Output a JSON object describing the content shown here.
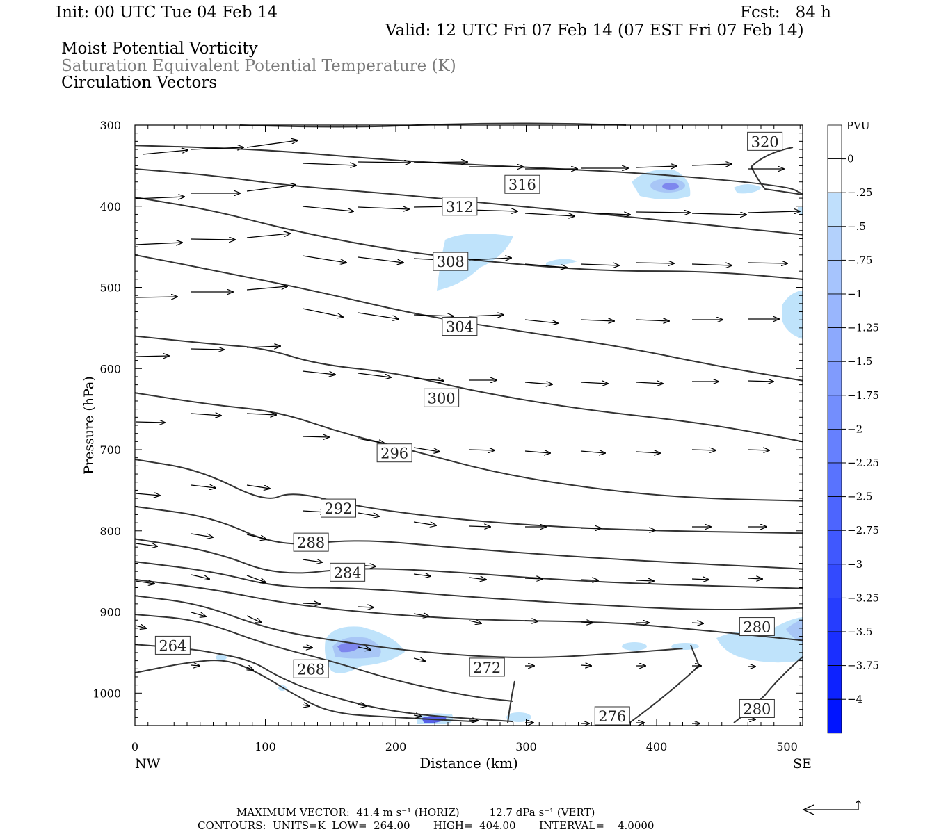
{
  "header": {
    "init": "Init: 00 UTC Tue 04 Feb 14",
    "fcst": "Fcst:   84 h",
    "valid": "Valid: 12 UTC Fri 07 Feb 14 (07 EST Fri 07 Feb 14)",
    "field1": "Moist Potential Vorticity",
    "field2": "Saturation Equivalent Potential Temperature (K)",
    "field3": "Circulation Vectors"
  },
  "footer": {
    "max_vector": "MAXIMUM VECTOR:  41.4 m s⁻¹ (HORIZ)         12.7 dPa s⁻¹ (VERT)",
    "contours": "CONTOURS:  UNITS=K  LOW=  264.00       HIGH=  404.00       INTERVAL=    4.0000"
  },
  "colors": {
    "contour": "#333333",
    "pv_light": "#bfe3fb",
    "pv_mid": "#a8c6f6",
    "pv_dark": "#7e86ee",
    "pv_strong": "#5560e8"
  },
  "chart_data": {
    "type": "contour",
    "xlabel": "Distance (km)",
    "ylabel": "Pressure (hPa)",
    "xlim": [
      0,
      512
    ],
    "ylim": [
      1040,
      300
    ],
    "x_ticks": [
      0,
      100,
      200,
      300,
      400,
      500
    ],
    "y_ticks": [
      300,
      400,
      500,
      600,
      700,
      800,
      900,
      1000
    ],
    "x_end_labels": {
      "left": "NW",
      "right": "SE"
    },
    "contour_labels": [
      {
        "text": "320",
        "x": 483,
        "p": 320
      },
      {
        "text": "316",
        "x": 297,
        "p": 373
      },
      {
        "text": "312",
        "x": 249,
        "p": 400
      },
      {
        "text": "308",
        "x": 242,
        "p": 468
      },
      {
        "text": "304",
        "x": 249,
        "p": 548
      },
      {
        "text": "300",
        "x": 235,
        "p": 636
      },
      {
        "text": "296",
        "x": 199,
        "p": 704
      },
      {
        "text": "292",
        "x": 156,
        "p": 772
      },
      {
        "text": "288",
        "x": 135,
        "p": 814
      },
      {
        "text": "284",
        "x": 163,
        "p": 851
      },
      {
        "text": "280",
        "x": 477,
        "p": 918
      },
      {
        "text": "264",
        "x": 29,
        "p": 941
      },
      {
        "text": "268",
        "x": 135,
        "p": 970
      },
      {
        "text": "272",
        "x": 270,
        "p": 968
      },
      {
        "text": "276",
        "x": 366,
        "p": 1028
      },
      {
        "text": "280",
        "x": 477,
        "p": 1019
      }
    ],
    "contour_lines": [
      [
        [
          0,
          325
        ],
        [
          100,
          330
        ],
        [
          200,
          344
        ],
        [
          300,
          352
        ],
        [
          400,
          360
        ],
        [
          500,
          375
        ],
        [
          512,
          385
        ]
      ],
      [
        [
          0,
          354
        ],
        [
          60,
          362
        ],
        [
          120,
          375
        ],
        [
          200,
          385
        ],
        [
          280,
          398
        ],
        [
          360,
          410
        ],
        [
          420,
          420
        ],
        [
          512,
          435
        ]
      ],
      [
        [
          0,
          389
        ],
        [
          60,
          405
        ],
        [
          120,
          430
        ],
        [
          200,
          455
        ],
        [
          280,
          470
        ],
        [
          360,
          480
        ],
        [
          440,
          480
        ],
        [
          512,
          490
        ]
      ],
      [
        [
          0,
          460
        ],
        [
          70,
          482
        ],
        [
          140,
          505
        ],
        [
          220,
          535
        ],
        [
          300,
          555
        ],
        [
          380,
          575
        ],
        [
          440,
          595
        ],
        [
          512,
          615
        ]
      ],
      [
        [
          0,
          560
        ],
        [
          60,
          570
        ],
        [
          100,
          575
        ],
        [
          140,
          595
        ],
        [
          200,
          605
        ],
        [
          260,
          628
        ],
        [
          340,
          650
        ],
        [
          440,
          668
        ],
        [
          512,
          690
        ]
      ],
      [
        [
          0,
          630
        ],
        [
          60,
          645
        ],
        [
          110,
          653
        ],
        [
          160,
          680
        ],
        [
          210,
          700
        ],
        [
          280,
          730
        ],
        [
          360,
          750
        ],
        [
          430,
          760
        ],
        [
          512,
          763
        ]
      ],
      [
        [
          0,
          712
        ],
        [
          50,
          725
        ],
        [
          100,
          765
        ],
        [
          120,
          751
        ],
        [
          170,
          770
        ],
        [
          240,
          785
        ],
        [
          320,
          795
        ],
        [
          400,
          800
        ],
        [
          512,
          803
        ]
      ],
      [
        [
          0,
          770
        ],
        [
          60,
          783
        ],
        [
          110,
          820
        ],
        [
          170,
          810
        ],
        [
          240,
          820
        ],
        [
          320,
          830
        ],
        [
          400,
          838
        ],
        [
          512,
          847
        ]
      ],
      [
        [
          0,
          810
        ],
        [
          60,
          825
        ],
        [
          110,
          856
        ],
        [
          170,
          845
        ],
        [
          240,
          850
        ],
        [
          320,
          860
        ],
        [
          400,
          866
        ],
        [
          512,
          871
        ]
      ],
      [
        [
          0,
          838
        ],
        [
          60,
          850
        ],
        [
          110,
          870
        ],
        [
          170,
          870
        ],
        [
          260,
          882
        ],
        [
          360,
          892
        ],
        [
          440,
          898
        ],
        [
          512,
          895
        ]
      ],
      [
        [
          0,
          860
        ],
        [
          60,
          872
        ],
        [
          110,
          888
        ],
        [
          170,
          900
        ],
        [
          260,
          910
        ],
        [
          360,
          912
        ],
        [
          420,
          920
        ],
        [
          512,
          935
        ]
      ],
      [
        [
          0,
          880
        ],
        [
          50,
          890
        ],
        [
          100,
          920
        ],
        [
          150,
          935
        ],
        [
          220,
          950
        ],
        [
          300,
          958
        ],
        [
          380,
          950
        ],
        [
          420,
          945
        ]
      ],
      [
        [
          0,
          903
        ],
        [
          50,
          910
        ],
        [
          100,
          940
        ],
        [
          150,
          960
        ],
        [
          200,
          985
        ],
        [
          260,
          1005
        ],
        [
          290,
          1010
        ]
      ],
      [
        [
          0,
          940
        ],
        [
          40,
          945
        ],
        [
          60,
          950
        ],
        [
          90,
          960
        ],
        [
          110,
          980
        ],
        [
          140,
          1000
        ],
        [
          200,
          1025
        ],
        [
          290,
          1035
        ]
      ],
      [
        [
          0,
          975
        ],
        [
          40,
          962
        ],
        [
          70,
          958
        ],
        [
          95,
          975
        ],
        [
          120,
          1000
        ],
        [
          150,
          1025
        ],
        [
          200,
          1030
        ],
        [
          260,
          1035
        ]
      ]
    ],
    "pv_legend": {
      "unit": "PVU",
      "levels": [
        "0",
        "-.25",
        "-.5",
        "-.75",
        "-1",
        "-1.25",
        "-1.5",
        "-1.75",
        "-2",
        "-2.25",
        "-2.5",
        "-2.75",
        "-3",
        "-3.25",
        "-3.5",
        "-3.75",
        "-4"
      ]
    }
  }
}
